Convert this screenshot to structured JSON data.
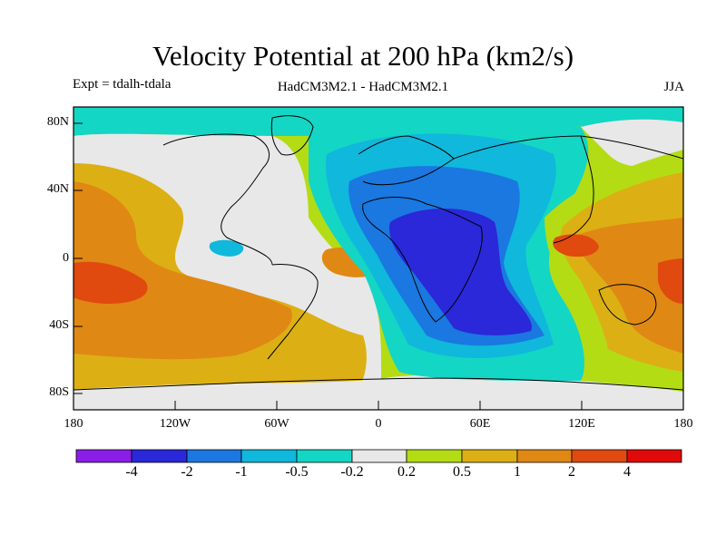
{
  "header": {
    "title": "Velocity Potential at 200 hPa (km2/s)",
    "expt": "Expt = tdalh-tdala",
    "models": "HadCM3M2.1 - HadCM3M2.1",
    "season": "JJA"
  },
  "map": {
    "y_ticks": [
      "80N",
      "40N",
      "0",
      "40S",
      "80S"
    ],
    "x_ticks": [
      "180",
      "120W",
      "60W",
      "0",
      "60E",
      "120E",
      "180"
    ]
  },
  "colorbar": {
    "labels": [
      "-4",
      "-2",
      "-1",
      "-0.5",
      "-0.2",
      "0.2",
      "0.5",
      "1",
      "2",
      "4"
    ],
    "colors": [
      "#8a1ee6",
      "#2a28d8",
      "#1a78e0",
      "#10b8dc",
      "#14d6c4",
      "#e8e8e8",
      "#b4dc14",
      "#dcb014",
      "#e08814",
      "#e04a0e",
      "#e00a0a"
    ]
  },
  "fields": {
    "colors": {
      "neg4": "#2a28d8",
      "neg2": "#1a78e0",
      "neg1": "#10b8dc",
      "neg05": "#14d6c4",
      "neutral": "#e8e8e8",
      "pos02": "#b4dc14",
      "pos05": "#dcb014",
      "pos1": "#e08814",
      "pos2": "#e04a0e",
      "pos4": "#e00a0a"
    }
  }
}
